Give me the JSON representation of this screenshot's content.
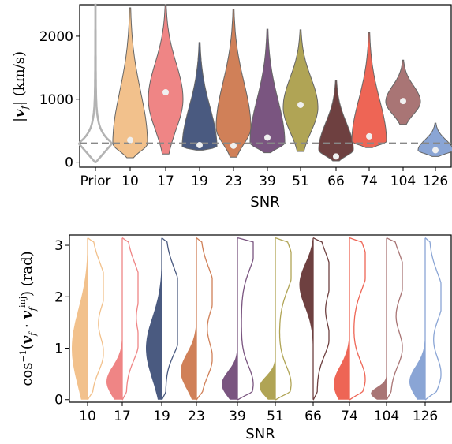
{
  "chart_data": [
    {
      "type": "violin",
      "xlabel": "SNR",
      "ylabel": "|v_f| (km/s)",
      "ylabel_parts": {
        "pre": "|",
        "var": "v",
        "sub": "f",
        "post": "| (km/s)"
      },
      "ylim": [
        -80,
        2500
      ],
      "yticks": [
        0,
        1000,
        2000
      ],
      "injected_value_line": 300,
      "categories": [
        "Prior",
        "10",
        "17",
        "19",
        "23",
        "39",
        "51",
        "66",
        "74",
        "104",
        "126"
      ],
      "series": [
        {
          "category": "Prior",
          "median": null,
          "lo": 0,
          "hi": 2500,
          "mode": 300,
          "style": "outline",
          "color": "#b3b3b3"
        },
        {
          "category": "10",
          "median": 350,
          "lo": 70,
          "hi": 2450,
          "mode": 300,
          "color": "#f2c18c"
        },
        {
          "category": "17",
          "median": 1110,
          "lo": 130,
          "hi": 2500,
          "mode": 1000,
          "color": "#ef8585"
        },
        {
          "category": "19",
          "median": 270,
          "lo": 190,
          "hi": 1900,
          "mode": 240,
          "color": "#4a5a80"
        },
        {
          "category": "23",
          "median": 260,
          "lo": 80,
          "hi": 2430,
          "mode": 550,
          "color": "#d08058"
        },
        {
          "category": "39",
          "median": 390,
          "lo": 150,
          "hi": 2110,
          "mode": 310,
          "color": "#7a5580"
        },
        {
          "category": "51",
          "median": 910,
          "lo": 170,
          "hi": 2100,
          "mode": 870,
          "color": "#b0a455"
        },
        {
          "category": "66",
          "median": 90,
          "lo": 20,
          "hi": 1300,
          "mode": 200,
          "color": "#6e4040"
        },
        {
          "category": "74",
          "median": 410,
          "lo": 230,
          "hi": 2060,
          "mode": 330,
          "color": "#ee6555"
        },
        {
          "category": "104",
          "median": 970,
          "lo": 600,
          "hi": 1620,
          "mode": 960,
          "color": "#a97575"
        },
        {
          "category": "126",
          "median": 190,
          "lo": 90,
          "hi": 620,
          "mode": 190,
          "color": "#8aa5d5"
        }
      ]
    },
    {
      "type": "split-violin",
      "xlabel": "SNR",
      "ylabel": "cos^-1(v̂_f · v̂_f^inj) (rad)",
      "ylabel_parts": {
        "fn": "cos",
        "sup": "−1",
        "open": "(",
        "v1": "v",
        "sub1": "f",
        "dot": " · ",
        "v2": "v",
        "sub2": "f",
        "sup2": "inj",
        "close": ") (rad)"
      },
      "ylim": [
        -0.05,
        3.2
      ],
      "yticks": [
        0,
        1,
        2,
        3
      ],
      "categories": [
        "10",
        "17",
        "19",
        "23",
        "39",
        "51",
        "66",
        "74",
        "104",
        "126"
      ],
      "series": [
        {
          "category": "10",
          "color": "#f2c18c",
          "filled_peak": 1.0,
          "filled_spread": 0.75,
          "outline_peaks": [
            0.9,
            2.2
          ]
        },
        {
          "category": "17",
          "color": "#ef8585",
          "filled_peak": 0.35,
          "filled_spread": 0.3,
          "outline_peaks": [
            1.1,
            2.2
          ]
        },
        {
          "category": "19",
          "color": "#4a5a80",
          "filled_peak": 1.0,
          "filled_spread": 0.6,
          "outline_peaks": [
            1.2,
            2.1
          ]
        },
        {
          "category": "23",
          "color": "#d08058",
          "filled_peak": 0.55,
          "filled_spread": 0.35,
          "outline_peaks": [
            0.8,
            2.1
          ]
        },
        {
          "category": "39",
          "color": "#7a5580",
          "filled_peak": 0.3,
          "filled_spread": 0.25,
          "outline_peaks": [
            0.3,
            3.0
          ]
        },
        {
          "category": "51",
          "color": "#b0a455",
          "filled_peak": 0.25,
          "filled_spread": 0.2,
          "outline_peaks": [
            0.3,
            2.6
          ]
        },
        {
          "category": "66",
          "color": "#6e4040",
          "filled_peak": 2.3,
          "filled_spread": 0.45,
          "outline_peaks": [
            1.2,
            2.4
          ]
        },
        {
          "category": "74",
          "color": "#ee6555",
          "filled_peak": 0.3,
          "filled_spread": 0.35,
          "outline_peaks": [
            0.4,
            2.6
          ]
        },
        {
          "category": "104",
          "color": "#a97575",
          "filled_peak": 0.12,
          "filled_spread": 0.12,
          "outline_peaks": [
            1.0,
            2.4
          ]
        },
        {
          "category": "126",
          "color": "#8aa5d5",
          "filled_peak": 0.35,
          "filled_spread": 0.3,
          "outline_peaks": [
            0.5,
            2.0
          ]
        }
      ]
    }
  ]
}
